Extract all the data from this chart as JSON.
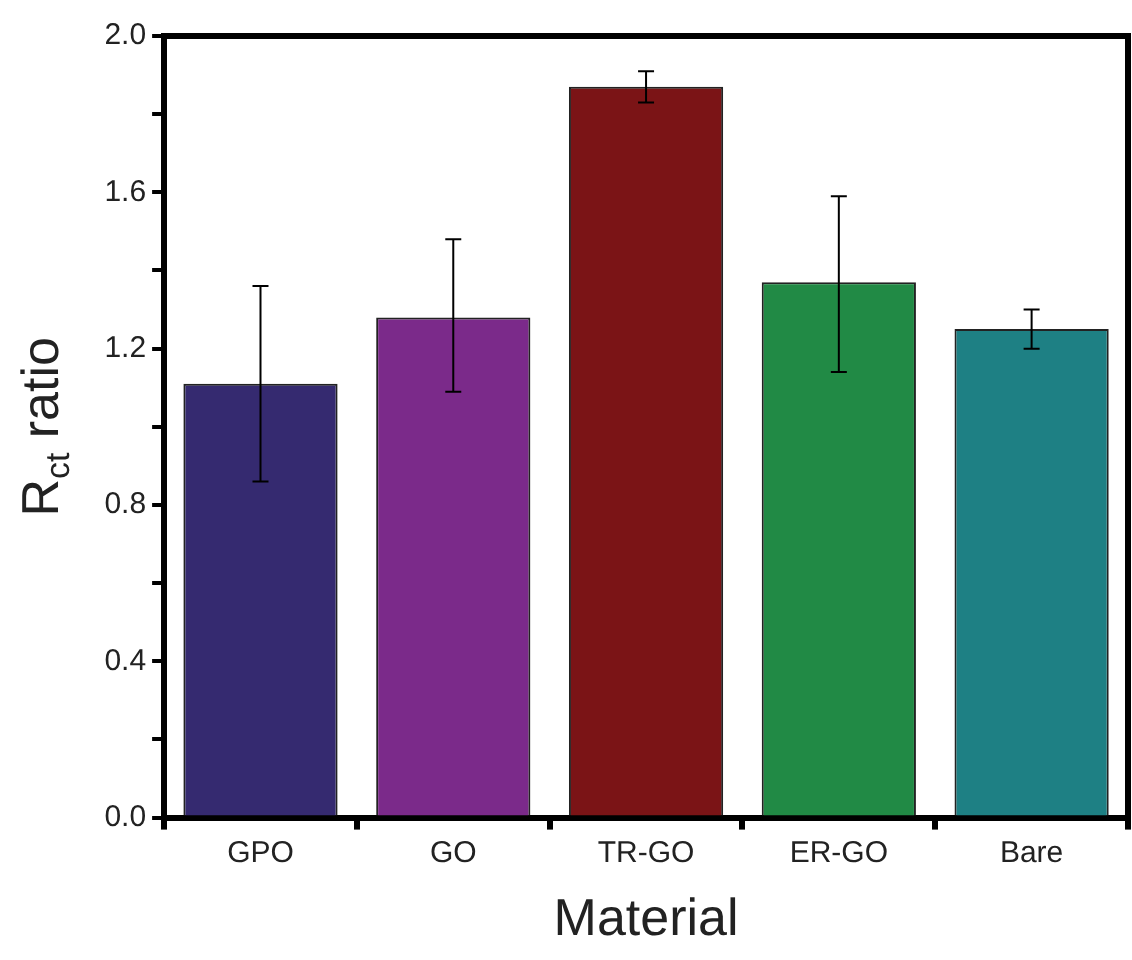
{
  "chart_data": {
    "type": "bar",
    "xlabel": "Material",
    "ylabel": "R$_{ct}$ ratio",
    "categories": [
      "GPO",
      "GO",
      "TR-GO",
      "ER-GO",
      "Bare"
    ],
    "values": [
      1.11,
      1.28,
      1.87,
      1.37,
      1.25
    ],
    "colors": [
      "#352a70",
      "#7b2a8a",
      "#7b1416",
      "#218a45",
      "#1e8084"
    ],
    "errors": [
      [
        0.86,
        1.36
      ],
      [
        1.09,
        1.48
      ],
      [
        1.83,
        1.91
      ],
      [
        1.14,
        1.59
      ],
      [
        1.2,
        1.3
      ]
    ],
    "ylim": [
      0,
      2
    ],
    "yticks": [
      {
        "value": 0,
        "label": "0.0"
      },
      {
        "value": 0.2,
        "label": null
      },
      0.4,
      {
        "value": 0.6,
        "label": null
      },
      0.8,
      {
        "value": 1.0,
        "label": null
      },
      1.2,
      {
        "value": 1.4,
        "label": null
      },
      1.6,
      {
        "value": 1.8,
        "label": null
      },
      {
        "value": 2,
        "label": "2.0"
      }
    ],
    "grid": false,
    "legend": false
  }
}
